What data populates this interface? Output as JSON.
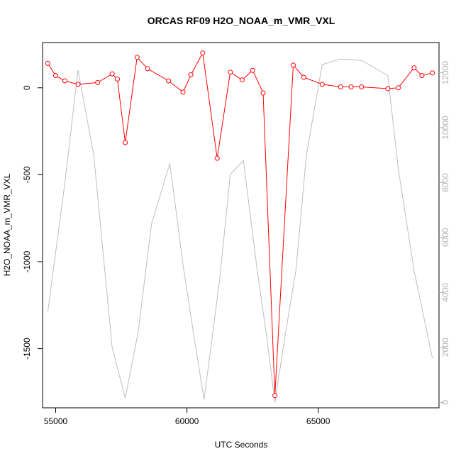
{
  "chart_data": {
    "type": "line",
    "title": "ORCAS RF09 H2O_NOAA_m_VMR_VXL",
    "xlabel": "UTC Seconds",
    "ylabel": "H2O_NOAA_m_VMR_VXL",
    "xlim": [
      54500,
      69600
    ],
    "ylim": [
      -1840,
      260
    ],
    "y2lim": [
      -200,
      13100
    ],
    "x_ticks": [
      55000,
      60000,
      65000
    ],
    "y_ticks": [
      0,
      -500,
      -1000,
      -1500
    ],
    "y2_ticks": [
      0,
      2000,
      4000,
      6000,
      8000,
      10000,
      12000
    ],
    "grid": false,
    "series": [
      {
        "axis": "left",
        "color": "#ff0000",
        "marker": "open-circle",
        "x": [
          54700,
          55000,
          55350,
          55850,
          56600,
          57150,
          57350,
          57650,
          58100,
          58500,
          59300,
          59850,
          60150,
          60600,
          61150,
          61650,
          62100,
          62500,
          62900,
          63350,
          64050,
          64450,
          65150,
          65850,
          66250,
          66650,
          67650,
          68050,
          68650,
          68950,
          69350
        ],
        "y": [
          140,
          70,
          40,
          20,
          30,
          80,
          50,
          -315,
          175,
          110,
          40,
          -25,
          75,
          200,
          -405,
          90,
          45,
          100,
          -30,
          -1770,
          130,
          60,
          20,
          5,
          5,
          5,
          -5,
          0,
          115,
          70,
          85
        ]
      },
      {
        "axis": "right",
        "color": "#bebebe",
        "marker": "none",
        "x": [
          54700,
          55350,
          55850,
          56450,
          57150,
          57650,
          58150,
          58650,
          59350,
          59850,
          60250,
          60650,
          61250,
          61650,
          62150,
          62650,
          63050,
          63350,
          63750,
          64150,
          64550,
          65150,
          65850,
          66650,
          67650,
          68050,
          68650,
          69350
        ],
        "y": [
          3300,
          8000,
          12100,
          9000,
          2000,
          150,
          2600,
          6500,
          8700,
          5000,
          2500,
          100,
          4500,
          8300,
          8800,
          5000,
          2300,
          0,
          2500,
          4800,
          9000,
          12300,
          12500,
          12450,
          11900,
          8500,
          4800,
          1600
        ]
      }
    ]
  }
}
